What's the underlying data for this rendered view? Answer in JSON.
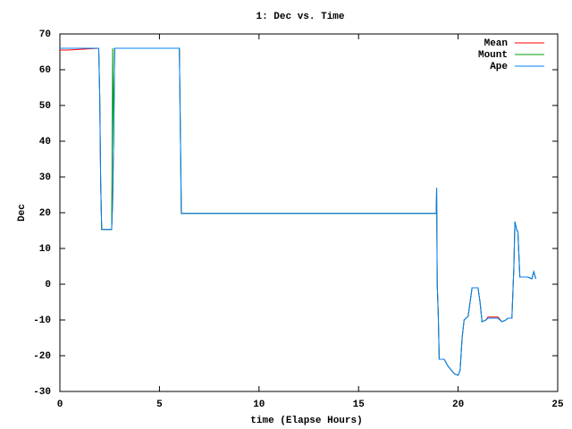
{
  "chart_data": {
    "type": "line",
    "title": "1: Dec vs. Time",
    "x_label": "time (Elapse Hours)",
    "y_label": "Dec",
    "x": [
      0,
      0.4,
      1.95,
      2.0,
      2.05,
      2.1,
      2.6,
      2.65,
      2.7,
      2.75,
      6.0,
      6.05,
      6.1,
      18.9,
      18.92,
      18.95,
      19.0,
      19.05,
      19.3,
      19.5,
      19.8,
      20.0,
      20.1,
      20.2,
      20.3,
      20.5,
      20.6,
      20.7,
      21.0,
      21.1,
      21.2,
      21.4,
      21.5,
      22.0,
      22.2,
      22.4,
      22.5,
      22.7,
      22.8,
      22.85,
      22.95,
      23.0,
      23.1,
      23.5,
      23.7,
      23.8,
      23.9
    ],
    "series": [
      {
        "name": "Mean",
        "color": "#ff0000",
        "values": [
          65.5,
          65.5,
          66,
          53,
          28,
          15.3,
          15.3,
          23,
          40,
          66,
          66,
          43,
          19.8,
          19.8,
          27,
          0,
          -8,
          -21,
          -21,
          -23,
          -25,
          -25.5,
          -24,
          -15,
          -10,
          -9,
          -5,
          -1,
          -1,
          -5,
          -10.5,
          -10,
          -9.2,
          -9.2,
          -10.5,
          -10,
          -9.5,
          -9.5,
          5,
          17.5,
          15,
          14.8,
          2,
          2,
          1.5,
          3.5,
          1.5
        ]
      },
      {
        "name": "Mount",
        "color": "#00a000",
        "values": [
          66,
          66,
          66,
          53,
          28,
          15.3,
          15.3,
          66,
          38,
          66,
          66,
          43,
          19.8,
          19.8,
          27,
          0,
          -8,
          -21,
          -21,
          -23,
          -25,
          -25.5,
          -24,
          -15,
          -10,
          -9,
          -5,
          -1,
          -1,
          -5,
          -10.5,
          -10,
          -9.5,
          -9.5,
          -10.5,
          -10,
          -9.5,
          -9.5,
          5,
          17.5,
          15,
          14.8,
          2,
          2,
          1.5,
          3.5,
          1.5
        ]
      },
      {
        "name": "Ape",
        "color": "#0080ff",
        "values": [
          66,
          66,
          66,
          53,
          28,
          15.3,
          15.3,
          23,
          40,
          66,
          66,
          43,
          19.8,
          19.8,
          27,
          0,
          -8,
          -21,
          -21,
          -23,
          -25,
          -25.5,
          -24,
          -15,
          -10,
          -9,
          -5,
          -1,
          -1,
          -5,
          -10.5,
          -10,
          -9.5,
          -9.5,
          -10.5,
          -10,
          -9.5,
          -9.5,
          5,
          17.5,
          15,
          14.8,
          2,
          2,
          1.5,
          3.5,
          1.5
        ]
      }
    ],
    "xlim": [
      0,
      25
    ],
    "xticks": [
      0,
      5,
      10,
      15,
      20,
      25
    ],
    "ylim": [
      -30,
      70
    ],
    "yticks": [
      -30,
      -20,
      -10,
      0,
      10,
      20,
      30,
      40,
      50,
      60,
      70
    ],
    "grid": false,
    "legend": "top-right"
  }
}
